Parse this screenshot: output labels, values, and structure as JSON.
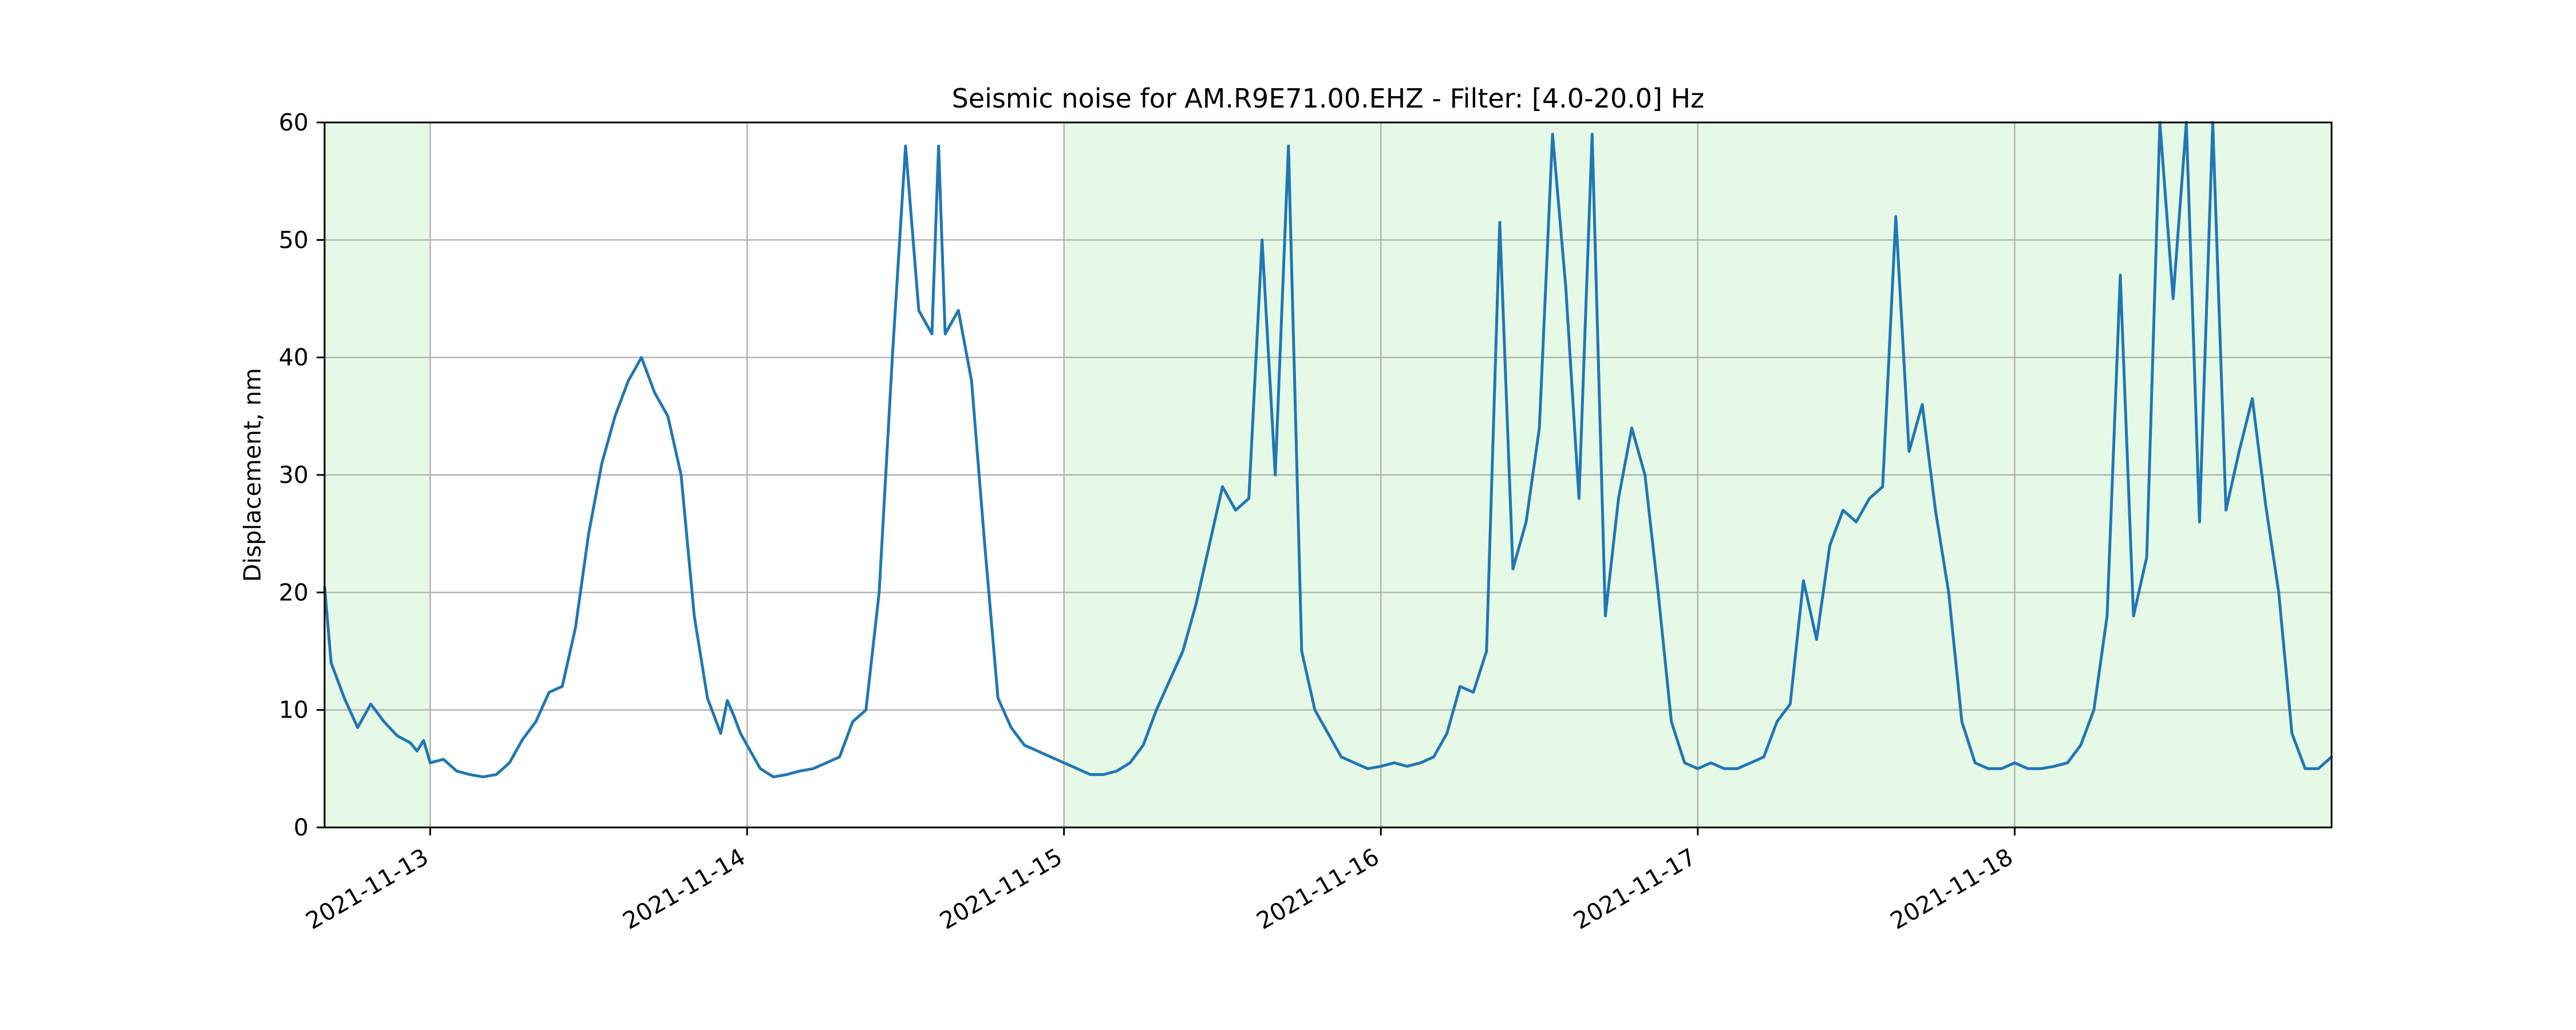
{
  "chart_data": {
    "type": "line",
    "title": "Seismic noise for AM.R9E71.00.EHZ - Filter: [4.0-20.0] Hz",
    "xlabel": "",
    "ylabel": "Displacement, nm",
    "xlim": [
      "2021-11-12 16:00",
      "2021-11-19 00:00"
    ],
    "ylim": [
      0,
      60
    ],
    "x_ticks": [
      "2021-11-13",
      "2021-11-14",
      "2021-11-15",
      "2021-11-16",
      "2021-11-17",
      "2021-11-18"
    ],
    "y_ticks": [
      0,
      10,
      20,
      30,
      40,
      50,
      60
    ],
    "grid": true,
    "legend": "none",
    "shaded_periods": [
      {
        "start": "2021-11-12 16:00",
        "end": "2021-11-13 00:00",
        "color": "#e6f9e6"
      },
      {
        "start": "2021-11-15 00:00",
        "end": "2021-11-19 00:00",
        "color": "#e6f9e6"
      }
    ],
    "series": [
      {
        "color": "#1f77b4",
        "points": [
          [
            "2021-11-12 16:00",
            20.5
          ],
          [
            "2021-11-12 16:30",
            14
          ],
          [
            "2021-11-12 17:30",
            11
          ],
          [
            "2021-11-12 18:30",
            8.5
          ],
          [
            "2021-11-12 19:30",
            10.5
          ],
          [
            "2021-11-12 20:30",
            9
          ],
          [
            "2021-11-12 21:30",
            7.8
          ],
          [
            "2021-11-12 22:30",
            7.2
          ],
          [
            "2021-11-12 23:00",
            6.5
          ],
          [
            "2021-11-12 23:30",
            7.4
          ],
          [
            "2021-11-13 00:00",
            5.5
          ],
          [
            "2021-11-13 01:00",
            5.8
          ],
          [
            "2021-11-13 02:00",
            4.8
          ],
          [
            "2021-11-13 03:00",
            4.5
          ],
          [
            "2021-11-13 04:00",
            4.3
          ],
          [
            "2021-11-13 05:00",
            4.5
          ],
          [
            "2021-11-13 06:00",
            5.5
          ],
          [
            "2021-11-13 07:00",
            7.5
          ],
          [
            "2021-11-13 08:00",
            9
          ],
          [
            "2021-11-13 09:00",
            11.5
          ],
          [
            "2021-11-13 10:00",
            12
          ],
          [
            "2021-11-13 11:00",
            17
          ],
          [
            "2021-11-13 12:00",
            25
          ],
          [
            "2021-11-13 13:00",
            31
          ],
          [
            "2021-11-13 14:00",
            35
          ],
          [
            "2021-11-13 15:00",
            38
          ],
          [
            "2021-11-13 16:00",
            40
          ],
          [
            "2021-11-13 17:00",
            37
          ],
          [
            "2021-11-13 18:00",
            35
          ],
          [
            "2021-11-13 19:00",
            30
          ],
          [
            "2021-11-13 20:00",
            18
          ],
          [
            "2021-11-13 21:00",
            11
          ],
          [
            "2021-11-13 22:00",
            8
          ],
          [
            "2021-11-13 22:30",
            10.8
          ],
          [
            "2021-11-13 23:00",
            9.5
          ],
          [
            "2021-11-13 23:30",
            8
          ],
          [
            "2021-11-14 00:00",
            7
          ],
          [
            "2021-11-14 01:00",
            5
          ],
          [
            "2021-11-14 02:00",
            4.3
          ],
          [
            "2021-11-14 03:00",
            4.5
          ],
          [
            "2021-11-14 04:00",
            4.8
          ],
          [
            "2021-11-14 05:00",
            5
          ],
          [
            "2021-11-14 06:00",
            5.5
          ],
          [
            "2021-11-14 07:00",
            6
          ],
          [
            "2021-11-14 08:00",
            9
          ],
          [
            "2021-11-14 09:00",
            10
          ],
          [
            "2021-11-14 10:00",
            20
          ],
          [
            "2021-11-14 11:00",
            40
          ],
          [
            "2021-11-14 12:00",
            58
          ],
          [
            "2021-11-14 13:00",
            44
          ],
          [
            "2021-11-14 14:00",
            42
          ],
          [
            "2021-11-14 14:30",
            58
          ],
          [
            "2021-11-14 15:00",
            42
          ],
          [
            "2021-11-14 16:00",
            44
          ],
          [
            "2021-11-14 17:00",
            38
          ],
          [
            "2021-11-14 18:00",
            24
          ],
          [
            "2021-11-14 19:00",
            11
          ],
          [
            "2021-11-14 20:00",
            8.5
          ],
          [
            "2021-11-14 21:00",
            7
          ],
          [
            "2021-11-14 22:00",
            6.5
          ],
          [
            "2021-11-14 23:00",
            6
          ],
          [
            "2021-11-15 00:00",
            5.5
          ],
          [
            "2021-11-15 01:00",
            5
          ],
          [
            "2021-11-15 02:00",
            4.5
          ],
          [
            "2021-11-15 03:00",
            4.5
          ],
          [
            "2021-11-15 04:00",
            4.8
          ],
          [
            "2021-11-15 05:00",
            5.5
          ],
          [
            "2021-11-15 06:00",
            7
          ],
          [
            "2021-11-15 07:00",
            10
          ],
          [
            "2021-11-15 08:00",
            12.5
          ],
          [
            "2021-11-15 09:00",
            15
          ],
          [
            "2021-11-15 10:00",
            19
          ],
          [
            "2021-11-15 11:00",
            24
          ],
          [
            "2021-11-15 12:00",
            29
          ],
          [
            "2021-11-15 13:00",
            27
          ],
          [
            "2021-11-15 14:00",
            28
          ],
          [
            "2021-11-15 15:00",
            50
          ],
          [
            "2021-11-15 16:00",
            30
          ],
          [
            "2021-11-15 17:00",
            58
          ],
          [
            "2021-11-15 18:00",
            15
          ],
          [
            "2021-11-15 19:00",
            10
          ],
          [
            "2021-11-15 20:00",
            8
          ],
          [
            "2021-11-15 21:00",
            6
          ],
          [
            "2021-11-15 22:00",
            5.5
          ],
          [
            "2021-11-15 23:00",
            5
          ],
          [
            "2021-11-16 00:00",
            5.2
          ],
          [
            "2021-11-16 01:00",
            5.5
          ],
          [
            "2021-11-16 02:00",
            5.2
          ],
          [
            "2021-11-16 03:00",
            5.5
          ],
          [
            "2021-11-16 04:00",
            6
          ],
          [
            "2021-11-16 05:00",
            8
          ],
          [
            "2021-11-16 06:00",
            12
          ],
          [
            "2021-11-16 07:00",
            11.5
          ],
          [
            "2021-11-16 08:00",
            15
          ],
          [
            "2021-11-16 09:00",
            51.5
          ],
          [
            "2021-11-16 10:00",
            22
          ],
          [
            "2021-11-16 11:00",
            26
          ],
          [
            "2021-11-16 12:00",
            34
          ],
          [
            "2021-11-16 13:00",
            59
          ],
          [
            "2021-11-16 14:00",
            46
          ],
          [
            "2021-11-16 15:00",
            28
          ],
          [
            "2021-11-16 16:00",
            59
          ],
          [
            "2021-11-16 17:00",
            18
          ],
          [
            "2021-11-16 18:00",
            28
          ],
          [
            "2021-11-16 19:00",
            34
          ],
          [
            "2021-11-16 20:00",
            30
          ],
          [
            "2021-11-16 21:00",
            20
          ],
          [
            "2021-11-16 22:00",
            9
          ],
          [
            "2021-11-16 23:00",
            5.5
          ],
          [
            "2021-11-17 00:00",
            5
          ],
          [
            "2021-11-17 01:00",
            5.5
          ],
          [
            "2021-11-17 02:00",
            5
          ],
          [
            "2021-11-17 03:00",
            5
          ],
          [
            "2021-11-17 04:00",
            5.5
          ],
          [
            "2021-11-17 05:00",
            6
          ],
          [
            "2021-11-17 06:00",
            9
          ],
          [
            "2021-11-17 07:00",
            10.5
          ],
          [
            "2021-11-17 08:00",
            21
          ],
          [
            "2021-11-17 09:00",
            16
          ],
          [
            "2021-11-17 10:00",
            24
          ],
          [
            "2021-11-17 11:00",
            27
          ],
          [
            "2021-11-17 12:00",
            26
          ],
          [
            "2021-11-17 13:00",
            28
          ],
          [
            "2021-11-17 14:00",
            29
          ],
          [
            "2021-11-17 15:00",
            52
          ],
          [
            "2021-11-17 16:00",
            32
          ],
          [
            "2021-11-17 17:00",
            36
          ],
          [
            "2021-11-17 18:00",
            27
          ],
          [
            "2021-11-17 19:00",
            20
          ],
          [
            "2021-11-17 20:00",
            9
          ],
          [
            "2021-11-17 21:00",
            5.5
          ],
          [
            "2021-11-17 22:00",
            5
          ],
          [
            "2021-11-17 23:00",
            5
          ],
          [
            "2021-11-18 00:00",
            5.5
          ],
          [
            "2021-11-18 01:00",
            5
          ],
          [
            "2021-11-18 02:00",
            5
          ],
          [
            "2021-11-18 03:00",
            5.2
          ],
          [
            "2021-11-18 04:00",
            5.5
          ],
          [
            "2021-11-18 05:00",
            7
          ],
          [
            "2021-11-18 06:00",
            10
          ],
          [
            "2021-11-18 07:00",
            18
          ],
          [
            "2021-11-18 08:00",
            47
          ],
          [
            "2021-11-18 09:00",
            18
          ],
          [
            "2021-11-18 10:00",
            23
          ],
          [
            "2021-11-18 11:00",
            60
          ],
          [
            "2021-11-18 12:00",
            45
          ],
          [
            "2021-11-18 13:00",
            60
          ],
          [
            "2021-11-18 14:00",
            26
          ],
          [
            "2021-11-18 15:00",
            60
          ],
          [
            "2021-11-18 16:00",
            27
          ],
          [
            "2021-11-18 17:00",
            32
          ],
          [
            "2021-11-18 18:00",
            36.5
          ],
          [
            "2021-11-18 19:00",
            27.5
          ],
          [
            "2021-11-18 20:00",
            20
          ],
          [
            "2021-11-18 21:00",
            8
          ],
          [
            "2021-11-18 22:00",
            5
          ],
          [
            "2021-11-18 23:00",
            5
          ],
          [
            "2021-11-19 00:00",
            6
          ]
        ]
      }
    ]
  }
}
